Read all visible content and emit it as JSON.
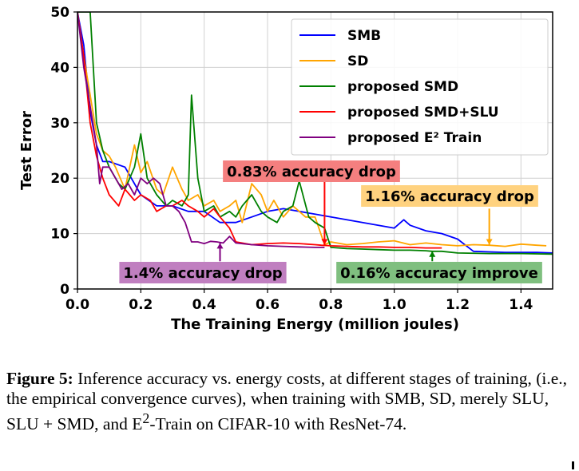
{
  "chart_data": {
    "type": "line",
    "xlabel": "The Training Energy (million joules)",
    "ylabel": "Test Error",
    "xlim": [
      0,
      1.5
    ],
    "ylim": [
      0,
      50
    ],
    "xticks": [
      "0.0",
      "0.2",
      "0.4",
      "0.6",
      "0.8",
      "1.0",
      "1.2",
      "1.4"
    ],
    "yticks": [
      "0",
      "10",
      "20",
      "30",
      "40",
      "50"
    ],
    "grid": true,
    "legend_position": "top-right",
    "series": [
      {
        "name": "SMB",
        "color": "#0000ff",
        "x": [
          0.0,
          0.02,
          0.04,
          0.06,
          0.08,
          0.1,
          0.15,
          0.2,
          0.25,
          0.3,
          0.35,
          0.4,
          0.45,
          0.5,
          0.55,
          0.6,
          0.65,
          0.7,
          0.75,
          0.8,
          0.85,
          0.9,
          0.95,
          1.0,
          1.03,
          1.05,
          1.1,
          1.15,
          1.2,
          1.25,
          1.3,
          1.35,
          1.4,
          1.45,
          1.5
        ],
        "y": [
          50,
          44,
          32,
          26,
          23,
          23,
          22,
          17,
          15,
          15,
          14,
          14,
          12,
          12,
          13,
          14,
          14.5,
          14,
          13.5,
          13,
          12.5,
          12,
          11.5,
          11,
          12.5,
          11.5,
          10.5,
          10,
          9,
          6.8,
          6.7,
          6.6,
          6.6,
          6.6,
          6.5
        ]
      },
      {
        "name": "SD",
        "color": "#ffa500",
        "x": [
          0.0,
          0.02,
          0.04,
          0.06,
          0.08,
          0.1,
          0.12,
          0.15,
          0.18,
          0.2,
          0.22,
          0.25,
          0.27,
          0.3,
          0.33,
          0.35,
          0.38,
          0.4,
          0.43,
          0.45,
          0.48,
          0.5,
          0.52,
          0.55,
          0.58,
          0.6,
          0.62,
          0.65,
          0.68,
          0.7,
          0.72,
          0.75,
          0.78,
          0.8,
          0.85,
          0.9,
          0.95,
          1.0,
          1.05,
          1.1,
          1.15,
          1.2,
          1.25,
          1.3,
          1.35,
          1.4,
          1.45,
          1.48
        ],
        "y": [
          50,
          42,
          35,
          28,
          25,
          24,
          22,
          18,
          26,
          21,
          23,
          18,
          17,
          22,
          18,
          16,
          17,
          15,
          16,
          14,
          15,
          16,
          12,
          19,
          17,
          14,
          16,
          13,
          15,
          14,
          13,
          13,
          8,
          8.5,
          8,
          8.2,
          8.5,
          8.7,
          8,
          8.3,
          8,
          7.8,
          8,
          7.9,
          7.7,
          8.1,
          7.9,
          7.8
        ]
      },
      {
        "name": "proposed SMD",
        "color": "#008000",
        "x": [
          0.0,
          0.02,
          0.04,
          0.06,
          0.08,
          0.1,
          0.13,
          0.15,
          0.18,
          0.2,
          0.22,
          0.25,
          0.28,
          0.3,
          0.33,
          0.35,
          0.36,
          0.38,
          0.4,
          0.43,
          0.45,
          0.48,
          0.5,
          0.52,
          0.55,
          0.58,
          0.6,
          0.63,
          0.65,
          0.68,
          0.7,
          0.73,
          0.75,
          0.78,
          0.8,
          0.85,
          0.9,
          0.95,
          1.0,
          1.05,
          1.1,
          1.12,
          1.15,
          1.2,
          1.3,
          1.4,
          1.5
        ],
        "y": [
          50,
          50,
          50,
          30,
          25,
          22,
          19,
          18,
          22,
          28,
          20,
          17,
          15,
          16,
          15,
          17,
          35,
          20,
          14,
          15,
          13,
          14,
          13,
          15,
          17,
          14,
          13,
          12,
          14,
          15,
          19.5,
          13,
          12,
          11,
          7.5,
          7.3,
          7.2,
          7.1,
          7.0,
          7.0,
          6.9,
          6.8,
          6.8,
          6.5,
          6.4,
          6.4,
          6.3
        ]
      },
      {
        "name": "proposed SMD+SLU",
        "color": "#ff0000",
        "x": [
          0.0,
          0.02,
          0.04,
          0.06,
          0.08,
          0.1,
          0.13,
          0.15,
          0.18,
          0.2,
          0.23,
          0.25,
          0.28,
          0.3,
          0.33,
          0.35,
          0.38,
          0.4,
          0.43,
          0.45,
          0.48,
          0.5,
          0.55,
          0.6,
          0.65,
          0.7,
          0.75,
          0.77,
          0.8,
          0.85,
          0.9,
          0.95,
          1.0,
          1.05,
          1.1,
          1.15
        ],
        "y": [
          50,
          42,
          30,
          24,
          20,
          17,
          15,
          18,
          16,
          17,
          16,
          14,
          15,
          15,
          16,
          15,
          14,
          13,
          14.5,
          13,
          11,
          8.5,
          8,
          8.2,
          8.3,
          8.2,
          8.0,
          7.9,
          7.8,
          7.7,
          7.6,
          7.6,
          7.5,
          7.5,
          7.4,
          7.4
        ]
      },
      {
        "name": "proposed E² Train",
        "color": "#800080",
        "x": [
          0.0,
          0.02,
          0.04,
          0.06,
          0.07,
          0.08,
          0.1,
          0.12,
          0.14,
          0.16,
          0.18,
          0.2,
          0.22,
          0.24,
          0.26,
          0.28,
          0.3,
          0.32,
          0.34,
          0.36,
          0.38,
          0.4,
          0.42,
          0.44,
          0.46,
          0.48,
          0.5,
          0.55,
          0.6,
          0.65,
          0.7,
          0.75,
          0.78
        ],
        "y": [
          50,
          40,
          33,
          26,
          19,
          22,
          22,
          20,
          18,
          19,
          17,
          20,
          19,
          20,
          19,
          15,
          15,
          14,
          12,
          8.5,
          8.5,
          8.2,
          8.6,
          8.5,
          8.3,
          9.5,
          8.3,
          8.0,
          7.8,
          7.7,
          7.6,
          7.5,
          7.5
        ]
      }
    ],
    "annotations": [
      {
        "text": "0.83% accuracy drop",
        "box_color": "#f47f7f",
        "arrow_color": "#ff0000",
        "arrow_from": [
          0.78,
          20
        ],
        "arrow_to": [
          0.78,
          8.0
        ]
      },
      {
        "text": "1.16% accuracy drop",
        "box_color": "#ffd27f",
        "arrow_color": "#ffa500",
        "arrow_from": [
          1.3,
          14.5
        ],
        "arrow_to": [
          1.3,
          8.0
        ]
      },
      {
        "text": "1.4% accuracy drop",
        "box_color": "#c07fc0",
        "arrow_color": "#800080",
        "arrow_from": [
          0.45,
          5.0
        ],
        "arrow_to": [
          0.45,
          8.3
        ]
      },
      {
        "text": "0.16% accuracy improve",
        "box_color": "#7fbf7f",
        "arrow_color": "#008000",
        "arrow_from": [
          1.12,
          5.0
        ],
        "arrow_to": [
          1.12,
          6.8
        ]
      }
    ]
  },
  "caption": {
    "label": "Figure 5:",
    "text_part1": " Inference accuracy vs. energy costs, at different stages of training, (i.e., the empirical convergence curves), when training with SMB, SD, merely SLU, SLU + SMD, and E",
    "superscript": "2",
    "text_part2": "-Train on CIFAR-10 with ResNet-74."
  }
}
